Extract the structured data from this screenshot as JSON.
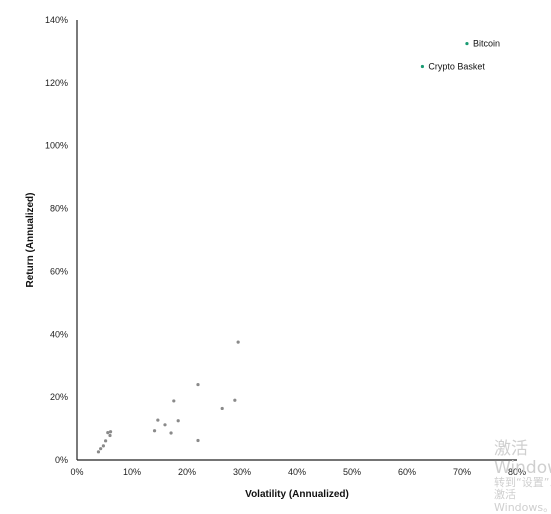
{
  "chart_data": {
    "type": "scatter",
    "title": "",
    "xlabel": "Volatility (Annualized)",
    "ylabel": "Return (Annualized)",
    "xlim": [
      0,
      80
    ],
    "ylim": [
      0,
      140
    ],
    "xticks": [
      "0%",
      "10%",
      "20%",
      "30%",
      "40%",
      "50%",
      "60%",
      "70%",
      "80%"
    ],
    "yticks": [
      "0%",
      "20%",
      "40%",
      "60%",
      "80%",
      "100%",
      "120%",
      "140%"
    ],
    "grid": false,
    "colors": {
      "highlight": "#1a9b73",
      "other": "#8a8a8a",
      "axis": "#222222"
    },
    "series": [
      {
        "points": [
          {
            "x": 70.9,
            "y": 132.5,
            "label": "Bitcoin"
          },
          {
            "x": 62.8,
            "y": 125.2,
            "label": "Crypto Basket"
          }
        ]
      },
      {
        "points": [
          {
            "x": 3.9,
            "y": 2.6
          },
          {
            "x": 4.3,
            "y": 3.6
          },
          {
            "x": 4.8,
            "y": 4.5
          },
          {
            "x": 5.2,
            "y": 6.1
          },
          {
            "x": 5.6,
            "y": 8.7
          },
          {
            "x": 6.0,
            "y": 7.8
          },
          {
            "x": 6.1,
            "y": 9.0
          },
          {
            "x": 14.1,
            "y": 9.3
          },
          {
            "x": 14.7,
            "y": 12.7
          },
          {
            "x": 16.0,
            "y": 11.2
          },
          {
            "x": 17.1,
            "y": 8.6
          },
          {
            "x": 17.6,
            "y": 18.8
          },
          {
            "x": 18.4,
            "y": 12.5
          },
          {
            "x": 22.0,
            "y": 24.0
          },
          {
            "x": 22.0,
            "y": 6.2
          },
          {
            "x": 26.4,
            "y": 16.4
          },
          {
            "x": 28.7,
            "y": 19.0
          },
          {
            "x": 29.3,
            "y": 37.5
          }
        ]
      }
    ]
  },
  "watermark": {
    "line1": "激活 Windows",
    "line2": "转到“设置”以激活 Windows。"
  }
}
